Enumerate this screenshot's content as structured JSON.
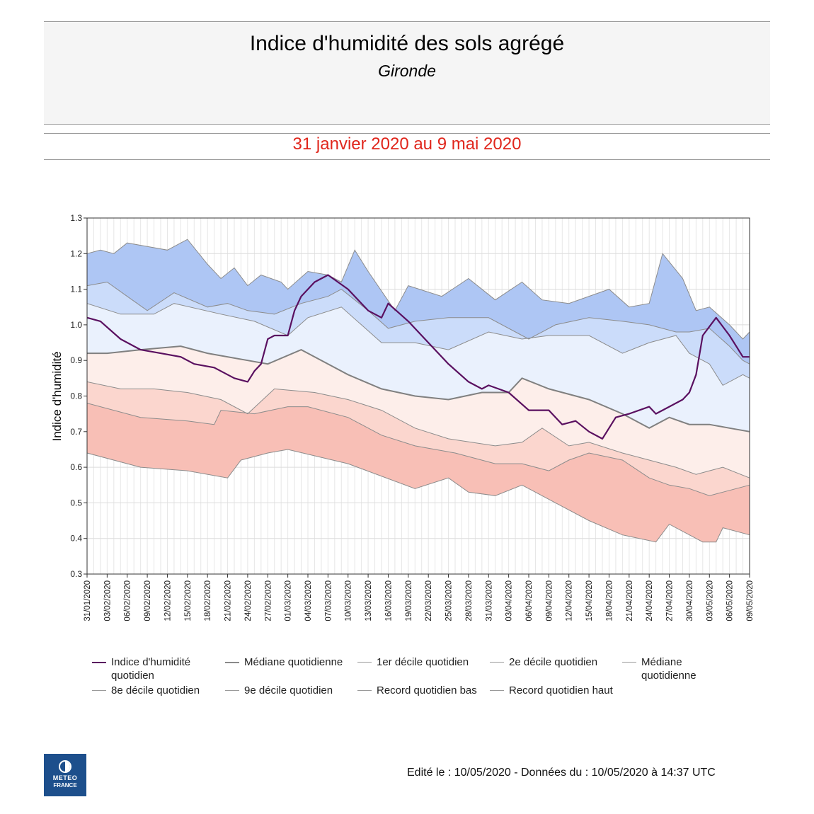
{
  "header": {
    "title": "Indice d'humidité des sols agrégé",
    "subtitle": "Gironde",
    "period": "31 janvier 2020 au 9 mai 2020"
  },
  "footer": "Edité le : 10/05/2020 - Données du : 10/05/2020 à 14:37 UTC",
  "logo": {
    "line1": "METEO",
    "line2": "FRANCE"
  },
  "legend": [
    {
      "label": "Indice d'humidité quotidien",
      "color": "#5a1060"
    },
    {
      "label": "Médiane quotidienne",
      "color": "#8a8a8a"
    },
    {
      "label": "1er décile quotidien",
      "color": "#9a9a9a"
    },
    {
      "label": "2e décile quotidien",
      "color": "#9a9a9a"
    },
    {
      "label": "Médiane quotidienne",
      "color": "#9a9a9a"
    },
    {
      "label": "8e décile quotidien",
      "color": "#9a9a9a"
    },
    {
      "label": "9e décile quotidien",
      "color": "#9a9a9a"
    },
    {
      "label": "Record quotidien bas",
      "color": "#9a9a9a"
    },
    {
      "label": "Record quotidien haut",
      "color": "#9a9a9a"
    }
  ],
  "chart_data": {
    "type": "area",
    "ylabel": "Indice d'humidité",
    "xlabel": "",
    "ylim": [
      0.3,
      1.3
    ],
    "yticks": [
      0.3,
      0.4,
      0.5,
      0.6,
      0.7,
      0.8,
      0.9,
      1.0,
      1.1,
      1.2,
      1.3
    ],
    "x_start": "31/01/2020",
    "x_end": "09/05/2020",
    "x_ticks": [
      "31/01/2020",
      "03/02/2020",
      "06/02/2020",
      "09/02/2020",
      "12/02/2020",
      "15/02/2020",
      "18/02/2020",
      "21/02/2020",
      "24/02/2020",
      "27/02/2020",
      "01/03/2020",
      "04/03/2020",
      "07/03/2020",
      "10/03/2020",
      "13/03/2020",
      "16/03/2020",
      "19/03/2020",
      "22/03/2020",
      "25/03/2020",
      "28/03/2020",
      "31/03/2020",
      "03/04/2020",
      "06/04/2020",
      "09/04/2020",
      "12/04/2020",
      "15/04/2020",
      "18/04/2020",
      "21/04/2020",
      "24/04/2020",
      "27/04/2020",
      "30/04/2020",
      "03/05/2020",
      "06/05/2020",
      "09/05/2020"
    ],
    "grid": true,
    "band_colors": [
      "#f8bfb6",
      "#fbd6ce",
      "#fdeeea",
      "#eaf1fd",
      "#cbdcfa",
      "#aec6f4"
    ],
    "line_colors": {
      "index": "#5a1060",
      "median": "#808080",
      "decile": "#8c8c8c"
    },
    "series": [
      {
        "key": "record_low",
        "name": "Record quotidien bas",
        "x": [
          "31/01/2020",
          "08/02/2020",
          "15/02/2020",
          "21/02/2020",
          "23/02/2020",
          "27/02/2020",
          "01/03/2020",
          "10/03/2020",
          "20/03/2020",
          "25/03/2020",
          "28/03/2020",
          "01/04/2020",
          "05/04/2020",
          "10/04/2020",
          "15/04/2020",
          "20/04/2020",
          "25/04/2020",
          "27/04/2020",
          "02/05/2020",
          "04/05/2020",
          "05/05/2020",
          "09/05/2020"
        ],
        "values": [
          0.64,
          0.6,
          0.59,
          0.57,
          0.62,
          0.64,
          0.65,
          0.61,
          0.54,
          0.57,
          0.53,
          0.52,
          0.55,
          0.5,
          0.45,
          0.41,
          0.39,
          0.44,
          0.39,
          0.39,
          0.43,
          0.41
        ]
      },
      {
        "key": "d1",
        "name": "1er décile quotidien",
        "x": [
          "31/01/2020",
          "08/02/2020",
          "15/02/2020",
          "19/02/2020",
          "20/02/2020",
          "25/02/2020",
          "01/03/2020",
          "04/03/2020",
          "10/03/2020",
          "15/03/2020",
          "20/03/2020",
          "26/03/2020",
          "01/04/2020",
          "05/04/2020",
          "09/04/2020",
          "12/04/2020",
          "15/04/2020",
          "20/04/2020",
          "24/04/2020",
          "27/04/2020",
          "30/04/2020",
          "03/05/2020",
          "05/05/2020",
          "09/05/2020"
        ],
        "values": [
          0.78,
          0.74,
          0.73,
          0.72,
          0.76,
          0.75,
          0.77,
          0.77,
          0.74,
          0.69,
          0.66,
          0.64,
          0.61,
          0.61,
          0.59,
          0.62,
          0.64,
          0.62,
          0.57,
          0.55,
          0.54,
          0.52,
          0.53,
          0.55
        ]
      },
      {
        "key": "d2",
        "name": "2e décile quotidien",
        "x": [
          "31/01/2020",
          "05/02/2020",
          "10/02/2020",
          "15/02/2020",
          "20/02/2020",
          "24/02/2020",
          "28/02/2020",
          "05/03/2020",
          "10/03/2020",
          "15/03/2020",
          "20/03/2020",
          "25/03/2020",
          "01/04/2020",
          "05/04/2020",
          "08/04/2020",
          "12/04/2020",
          "15/04/2020",
          "20/04/2020",
          "24/04/2020",
          "28/04/2020",
          "01/05/2020",
          "03/05/2020",
          "05/05/2020",
          "09/05/2020"
        ],
        "values": [
          0.84,
          0.82,
          0.82,
          0.81,
          0.79,
          0.75,
          0.82,
          0.81,
          0.79,
          0.76,
          0.71,
          0.68,
          0.66,
          0.67,
          0.71,
          0.66,
          0.67,
          0.64,
          0.62,
          0.6,
          0.58,
          0.59,
          0.6,
          0.57
        ]
      },
      {
        "key": "median",
        "name": "Médiane quotidienne",
        "x": [
          "31/01/2020",
          "03/02/2020",
          "08/02/2020",
          "14/02/2020",
          "18/02/2020",
          "24/02/2020",
          "27/02/2020",
          "03/03/2020",
          "10/03/2020",
          "15/03/2020",
          "20/03/2020",
          "25/03/2020",
          "30/03/2020",
          "03/04/2020",
          "05/04/2020",
          "09/04/2020",
          "15/04/2020",
          "20/04/2020",
          "24/04/2020",
          "27/04/2020",
          "30/04/2020",
          "03/05/2020",
          "06/05/2020",
          "09/05/2020"
        ],
        "values": [
          0.92,
          0.92,
          0.93,
          0.94,
          0.92,
          0.9,
          0.89,
          0.93,
          0.86,
          0.82,
          0.8,
          0.79,
          0.81,
          0.81,
          0.85,
          0.82,
          0.79,
          0.75,
          0.71,
          0.74,
          0.72,
          0.72,
          0.71,
          0.7
        ]
      },
      {
        "key": "d8",
        "name": "8e décile quotidien",
        "x": [
          "31/01/2020",
          "05/02/2020",
          "10/02/2020",
          "13/02/2020",
          "20/02/2020",
          "25/02/2020",
          "01/03/2020",
          "04/03/2020",
          "09/03/2020",
          "15/03/2020",
          "20/03/2020",
          "25/03/2020",
          "31/03/2020",
          "05/04/2020",
          "09/04/2020",
          "15/04/2020",
          "20/04/2020",
          "24/04/2020",
          "28/04/2020",
          "30/04/2020",
          "03/05/2020",
          "05/05/2020",
          "08/05/2020",
          "09/05/2020"
        ],
        "values": [
          1.06,
          1.03,
          1.03,
          1.06,
          1.03,
          1.01,
          0.97,
          1.02,
          1.05,
          0.95,
          0.95,
          0.93,
          0.98,
          0.96,
          0.97,
          0.97,
          0.92,
          0.95,
          0.97,
          0.92,
          0.89,
          0.83,
          0.86,
          0.85
        ]
      },
      {
        "key": "d9",
        "name": "9e décile quotidien",
        "x": [
          "31/01/2020",
          "03/02/2020",
          "06/02/2020",
          "09/02/2020",
          "13/02/2020",
          "18/02/2020",
          "21/02/2020",
          "24/02/2020",
          "28/02/2020",
          "03/03/2020",
          "07/03/2020",
          "09/03/2020",
          "13/03/2020",
          "16/03/2020",
          "20/03/2020",
          "25/03/2020",
          "31/03/2020",
          "06/04/2020",
          "10/04/2020",
          "15/04/2020",
          "20/04/2020",
          "24/04/2020",
          "28/04/2020",
          "30/04/2020",
          "03/05/2020",
          "06/05/2020",
          "08/05/2020",
          "09/05/2020"
        ],
        "values": [
          1.11,
          1.12,
          1.08,
          1.04,
          1.09,
          1.05,
          1.06,
          1.04,
          1.03,
          1.06,
          1.08,
          1.1,
          1.04,
          0.99,
          1.01,
          1.02,
          1.02,
          0.96,
          1.0,
          1.02,
          1.01,
          1.0,
          0.98,
          0.98,
          0.99,
          0.94,
          0.9,
          0.89
        ]
      },
      {
        "key": "record_high",
        "name": "Record quotidien haut",
        "x": [
          "31/01/2020",
          "02/02/2020",
          "04/02/2020",
          "06/02/2020",
          "09/02/2020",
          "12/02/2020",
          "15/02/2020",
          "18/02/2020",
          "20/02/2020",
          "22/02/2020",
          "24/02/2020",
          "26/02/2020",
          "29/02/2020",
          "01/03/2020",
          "04/03/2020",
          "07/03/2020",
          "09/03/2020",
          "11/03/2020",
          "13/03/2020",
          "17/03/2020",
          "19/03/2020",
          "24/03/2020",
          "28/03/2020",
          "01/04/2020",
          "05/04/2020",
          "08/04/2020",
          "12/04/2020",
          "18/04/2020",
          "21/04/2020",
          "24/04/2020",
          "26/04/2020",
          "29/04/2020",
          "01/05/2020",
          "03/05/2020",
          "06/05/2020",
          "08/05/2020",
          "09/05/2020"
        ],
        "values": [
          1.2,
          1.21,
          1.2,
          1.23,
          1.22,
          1.21,
          1.24,
          1.17,
          1.13,
          1.16,
          1.11,
          1.14,
          1.12,
          1.1,
          1.15,
          1.14,
          1.12,
          1.21,
          1.15,
          1.04,
          1.11,
          1.08,
          1.13,
          1.07,
          1.12,
          1.07,
          1.06,
          1.1,
          1.05,
          1.06,
          1.2,
          1.13,
          1.04,
          1.05,
          1.0,
          0.96,
          0.98
        ]
      },
      {
        "key": "index",
        "name": "Indice d'humidité quotidien",
        "x": [
          "31/01/2020",
          "02/02/2020",
          "05/02/2020",
          "08/02/2020",
          "11/02/2020",
          "14/02/2020",
          "16/02/2020",
          "19/02/2020",
          "22/02/2020",
          "24/02/2020",
          "25/02/2020",
          "26/02/2020",
          "27/02/2020",
          "28/02/2020",
          "01/03/2020",
          "02/03/2020",
          "03/03/2020",
          "05/03/2020",
          "07/03/2020",
          "10/03/2020",
          "13/03/2020",
          "15/03/2020",
          "16/03/2020",
          "19/03/2020",
          "22/03/2020",
          "25/03/2020",
          "28/03/2020",
          "30/03/2020",
          "31/03/2020",
          "03/04/2020",
          "06/04/2020",
          "09/04/2020",
          "11/04/2020",
          "13/04/2020",
          "15/04/2020",
          "17/04/2020",
          "19/04/2020",
          "21/04/2020",
          "24/04/2020",
          "25/04/2020",
          "27/04/2020",
          "29/04/2020",
          "30/04/2020",
          "01/05/2020",
          "02/05/2020",
          "04/05/2020",
          "06/05/2020",
          "07/05/2020",
          "08/05/2020",
          "09/05/2020"
        ],
        "values": [
          1.02,
          1.01,
          0.96,
          0.93,
          0.92,
          0.91,
          0.89,
          0.88,
          0.85,
          0.84,
          0.87,
          0.89,
          0.96,
          0.97,
          0.97,
          1.04,
          1.08,
          1.12,
          1.14,
          1.1,
          1.04,
          1.02,
          1.06,
          1.01,
          0.95,
          0.89,
          0.84,
          0.82,
          0.83,
          0.81,
          0.76,
          0.76,
          0.72,
          0.73,
          0.7,
          0.68,
          0.74,
          0.75,
          0.77,
          0.75,
          0.77,
          0.79,
          0.81,
          0.86,
          0.97,
          1.02,
          0.97,
          0.94,
          0.91,
          0.91
        ]
      }
    ]
  }
}
